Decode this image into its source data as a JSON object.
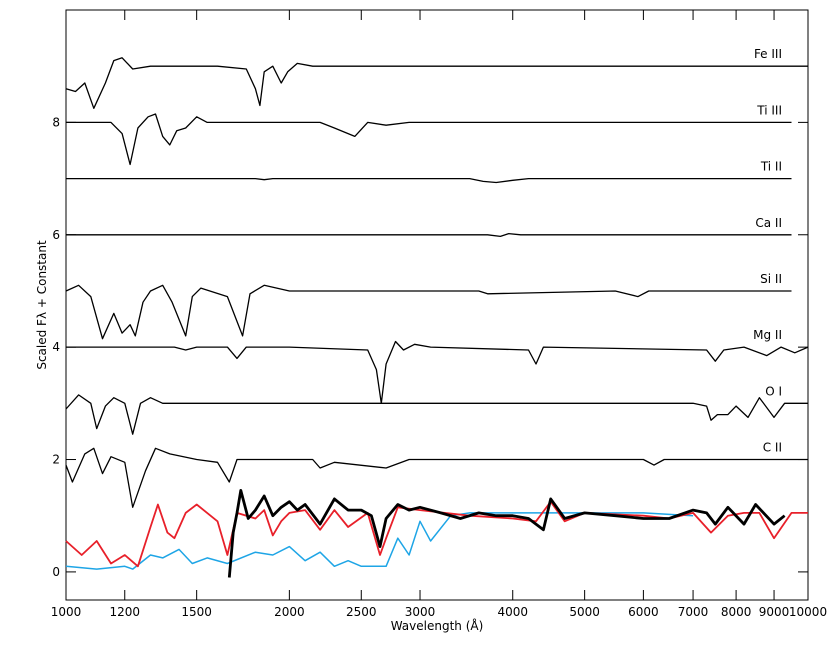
{
  "chart_data": {
    "type": "line",
    "x_label": "Wavelength (Å)",
    "y_label": "Scaled Fλ + Constant",
    "xscale": "log",
    "xlim": [
      1000,
      10000
    ],
    "xticks": [
      1000,
      1200,
      1500,
      2000,
      2500,
      3000,
      4000,
      5000,
      6000,
      7000,
      8000,
      9000,
      10000
    ],
    "ylim": [
      -0.5,
      10
    ],
    "yticks": [
      0,
      2,
      4,
      6,
      8
    ],
    "series": [
      {
        "name": "Fe III",
        "color": "#000000",
        "linewidth": 1.3,
        "x": [
          1000,
          1030,
          1060,
          1090,
          1130,
          1160,
          1190,
          1230,
          1300,
          1600,
          1750,
          1800,
          1825,
          1850,
          1900,
          1950,
          1990,
          2050,
          2150,
          10000
        ],
        "values": [
          8.6,
          8.55,
          8.7,
          8.25,
          8.7,
          9.1,
          9.15,
          8.95,
          9.0,
          9.0,
          8.95,
          8.6,
          8.3,
          8.9,
          9.0,
          8.7,
          8.9,
          9.05,
          9.0,
          9.0
        ]
      },
      {
        "name": "Ti III",
        "color": "#000000",
        "linewidth": 1.3,
        "x": [
          1000,
          1150,
          1190,
          1220,
          1250,
          1290,
          1320,
          1350,
          1380,
          1410,
          1450,
          1500,
          1550,
          2200,
          2300,
          2450,
          2550,
          2700,
          2900,
          9500
        ],
        "values": [
          8.0,
          8.0,
          7.8,
          7.25,
          7.9,
          8.1,
          8.15,
          7.75,
          7.6,
          7.85,
          7.9,
          8.1,
          8.0,
          8.0,
          7.9,
          7.75,
          8.0,
          7.95,
          8.0,
          8.0
        ]
      },
      {
        "name": "Ti II",
        "color": "#000000",
        "linewidth": 1.3,
        "x": [
          1000,
          1800,
          1850,
          1900,
          3500,
          3650,
          3800,
          4000,
          4200,
          9500
        ],
        "values": [
          7.0,
          7.0,
          6.98,
          7.0,
          7.0,
          6.95,
          6.93,
          6.97,
          7.0,
          7.0
        ]
      },
      {
        "name": "Ca II",
        "color": "#000000",
        "linewidth": 1.3,
        "x": [
          1000,
          3700,
          3850,
          3950,
          4100,
          9500
        ],
        "values": [
          6.0,
          6.0,
          5.97,
          6.02,
          6.0,
          6.0
        ]
      },
      {
        "name": "Si II",
        "color": "#000000",
        "linewidth": 1.3,
        "x": [
          1000,
          1040,
          1080,
          1120,
          1160,
          1190,
          1220,
          1240,
          1270,
          1300,
          1350,
          1390,
          1450,
          1480,
          1520,
          1650,
          1730,
          1770,
          1850,
          2000,
          3600,
          3700,
          5500,
          5900,
          6100,
          9500
        ],
        "values": [
          5.0,
          5.1,
          4.9,
          4.15,
          4.6,
          4.25,
          4.4,
          4.2,
          4.8,
          5.0,
          5.1,
          4.8,
          4.2,
          4.9,
          5.05,
          4.9,
          4.2,
          4.95,
          5.1,
          5.0,
          5.0,
          4.95,
          5.0,
          4.9,
          5.0,
          5.0
        ]
      },
      {
        "name": "Mg II",
        "color": "#000000",
        "linewidth": 1.3,
        "x": [
          1000,
          1400,
          1450,
          1500,
          1650,
          1700,
          1750,
          2000,
          2550,
          2620,
          2660,
          2700,
          2780,
          2850,
          2950,
          3100,
          4200,
          4300,
          4400,
          7300,
          7500,
          7700,
          8200,
          8800,
          9200,
          9600,
          10000
        ],
        "values": [
          4.0,
          4.0,
          3.95,
          4.0,
          4.0,
          3.8,
          4.0,
          4.0,
          3.95,
          3.6,
          3.0,
          3.7,
          4.1,
          3.95,
          4.05,
          4.0,
          3.95,
          3.7,
          4.0,
          3.95,
          3.75,
          3.95,
          4.0,
          3.85,
          4.0,
          3.9,
          4.0
        ]
      },
      {
        "name": "O I",
        "color": "#000000",
        "linewidth": 1.3,
        "x": [
          1000,
          1040,
          1080,
          1100,
          1130,
          1160,
          1200,
          1230,
          1260,
          1300,
          1350,
          7000,
          7300,
          7400,
          7550,
          7800,
          8000,
          8300,
          8600,
          9000,
          9300,
          10000
        ],
        "values": [
          2.9,
          3.15,
          3.0,
          2.55,
          2.95,
          3.1,
          3.0,
          2.45,
          3.0,
          3.1,
          3.0,
          3.0,
          2.95,
          2.7,
          2.8,
          2.8,
          2.95,
          2.75,
          3.1,
          2.75,
          3.0,
          3.0
        ]
      },
      {
        "name": "C II",
        "color": "#000000",
        "linewidth": 1.3,
        "x": [
          1000,
          1020,
          1060,
          1090,
          1120,
          1150,
          1200,
          1230,
          1280,
          1320,
          1380,
          1500,
          1600,
          1660,
          1700,
          2150,
          2200,
          2300,
          2700,
          2900,
          6000,
          6200,
          6400,
          10000
        ],
        "values": [
          1.9,
          1.6,
          2.1,
          2.2,
          1.75,
          2.05,
          1.95,
          1.15,
          1.8,
          2.2,
          2.1,
          2.0,
          1.95,
          1.6,
          2.0,
          2.0,
          1.85,
          1.95,
          1.85,
          2.0,
          2.0,
          1.9,
          2.0,
          2.0
        ]
      },
      {
        "color": "#1ea5e6",
        "linewidth": 1.5,
        "x": [
          1000,
          1100,
          1200,
          1230,
          1300,
          1350,
          1420,
          1480,
          1550,
          1650,
          1800,
          1900,
          2000,
          2100,
          2200,
          2300,
          2400,
          2500,
          2700,
          2800,
          2900,
          3000,
          3100,
          3300,
          3500,
          4000,
          6000,
          7000
        ],
        "values": [
          0.1,
          0.05,
          0.1,
          0.05,
          0.3,
          0.25,
          0.4,
          0.15,
          0.25,
          0.15,
          0.35,
          0.3,
          0.45,
          0.2,
          0.35,
          0.1,
          0.2,
          0.1,
          0.1,
          0.6,
          0.3,
          0.9,
          0.55,
          1.0,
          1.05,
          1.05,
          1.05,
          1.0
        ]
      },
      {
        "color": "#e8202a",
        "linewidth": 1.8,
        "x": [
          1000,
          1050,
          1100,
          1150,
          1200,
          1250,
          1300,
          1330,
          1370,
          1400,
          1450,
          1500,
          1600,
          1650,
          1700,
          1800,
          1850,
          1900,
          1950,
          2000,
          2100,
          2200,
          2300,
          2400,
          2550,
          2650,
          2700,
          2800,
          3000,
          3500,
          4000,
          4300,
          4500,
          4700,
          5000,
          6000,
          6500,
          7000,
          7400,
          7800,
          8200,
          8600,
          9000,
          9500,
          10000
        ],
        "values": [
          0.55,
          0.3,
          0.55,
          0.15,
          0.3,
          0.1,
          0.8,
          1.2,
          0.7,
          0.6,
          1.05,
          1.2,
          0.9,
          0.3,
          1.05,
          0.95,
          1.1,
          0.65,
          0.9,
          1.05,
          1.1,
          0.75,
          1.1,
          0.8,
          1.05,
          0.3,
          0.6,
          1.15,
          1.1,
          1.0,
          0.95,
          0.9,
          1.25,
          0.9,
          1.05,
          1.0,
          0.95,
          1.05,
          0.7,
          1.0,
          1.05,
          1.05,
          0.6,
          1.05,
          1.05
        ]
      },
      {
        "color": "#000000",
        "linewidth": 2.8,
        "x": [
          1660,
          1680,
          1700,
          1720,
          1760,
          1800,
          1850,
          1900,
          1950,
          2000,
          2050,
          2100,
          2200,
          2300,
          2400,
          2500,
          2580,
          2650,
          2700,
          2800,
          2900,
          3000,
          3200,
          3400,
          3600,
          3800,
          4000,
          4200,
          4400,
          4500,
          4700,
          5000,
          5500,
          6000,
          6500,
          7000,
          7300,
          7500,
          7800,
          8200,
          8500,
          9000,
          9300
        ],
        "values": [
          -0.1,
          0.7,
          1.05,
          1.45,
          0.95,
          1.1,
          1.35,
          1.0,
          1.15,
          1.25,
          1.1,
          1.2,
          0.85,
          1.3,
          1.1,
          1.1,
          1.0,
          0.45,
          0.95,
          1.2,
          1.1,
          1.15,
          1.05,
          0.95,
          1.05,
          1.0,
          1.0,
          0.95,
          0.75,
          1.3,
          0.95,
          1.05,
          1.0,
          0.95,
          0.95,
          1.1,
          1.05,
          0.85,
          1.15,
          0.85,
          1.2,
          0.85,
          1.0
        ]
      }
    ]
  }
}
